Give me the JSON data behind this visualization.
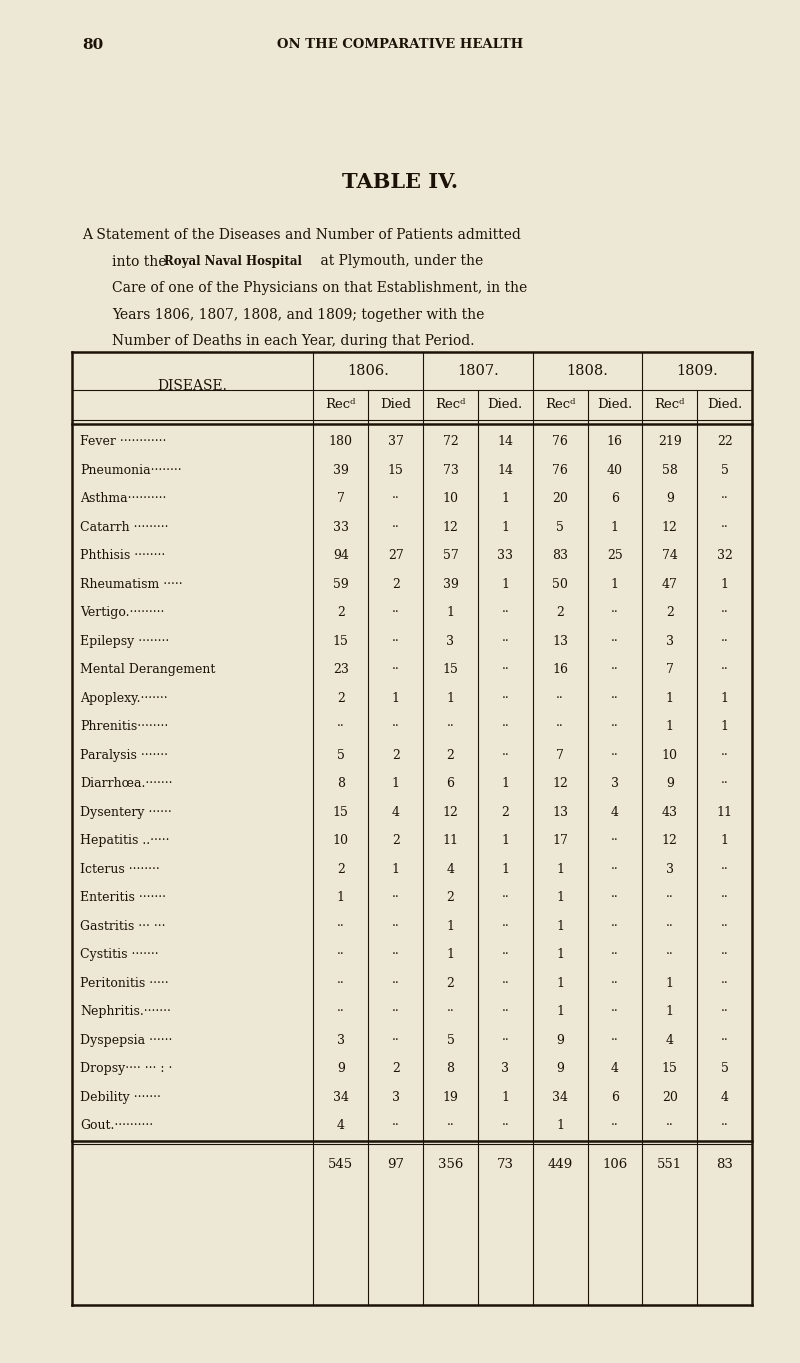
{
  "page_number": "80",
  "header": "ON THE COMPARATIVE HEALTH",
  "title": "TABLE IV.",
  "desc_line1": "A Statement of the Diseases and Number of Patients admitted",
  "desc_line2a": "into the ",
  "desc_line2b": "Royal Naval Hospital",
  "desc_line2c": " at Plymouth, under the",
  "desc_line3": "Care of one of the Physicians on that Establishment, in the",
  "desc_line4": "Years 1806, 1807, 1808, and 1809; together with the",
  "desc_line5": "Number of Deaths in each Year, during that Period.",
  "col_years": [
    "1806.",
    "1807.",
    "1808.",
    "1809."
  ],
  "col_sub": [
    "Recᵈ",
    "Died",
    "Recᵈ",
    "Died.",
    "Recᵈ",
    "Died.",
    "Recᵈ",
    "Died."
  ],
  "disease_col": "DISEASE.",
  "diseases": [
    "Fever ············",
    "Pneumonia········",
    "Asthma··········",
    "Catarrh ·········",
    "Phthisis ········",
    "Rheumatism ·····",
    "Vertigo.·········",
    "Epilepsy ········",
    "Mental Derangement",
    "Apoplexy.·······",
    "Phrenitis········",
    "Paralysis ·······",
    "Diarrhœa.·······",
    "Dysentery ······",
    "Hepatitis ..·····",
    "Icterus ········",
    "Enteritis ·······",
    "Gastritis ··· ···",
    "Cystitis ·······",
    "Peritonitis ·····",
    "Nephritis.·······",
    "Dyspepsia ······",
    "Dropsy···· ··· : ·",
    "Debility ·······",
    "Gout.··········"
  ],
  "data": [
    [
      180,
      37,
      72,
      14,
      76,
      16,
      219,
      22
    ],
    [
      39,
      15,
      73,
      14,
      76,
      40,
      58,
      5
    ],
    [
      7,
      "",
      10,
      1,
      20,
      6,
      9,
      ""
    ],
    [
      33,
      "",
      12,
      1,
      5,
      1,
      12,
      ""
    ],
    [
      94,
      27,
      57,
      33,
      83,
      25,
      74,
      32
    ],
    [
      59,
      2,
      39,
      1,
      50,
      1,
      47,
      1
    ],
    [
      2,
      "",
      1,
      "",
      2,
      "",
      2,
      ""
    ],
    [
      15,
      "",
      3,
      "",
      13,
      "",
      3,
      ""
    ],
    [
      23,
      "",
      15,
      "",
      16,
      "",
      7,
      ""
    ],
    [
      2,
      1,
      1,
      "",
      "",
      "",
      1,
      1
    ],
    [
      "",
      "",
      "",
      "",
      "",
      "",
      1,
      1
    ],
    [
      5,
      2,
      2,
      "",
      7,
      "",
      10,
      ""
    ],
    [
      8,
      1,
      6,
      1,
      12,
      3,
      9,
      ""
    ],
    [
      15,
      4,
      12,
      2,
      13,
      4,
      43,
      11
    ],
    [
      10,
      2,
      11,
      1,
      17,
      "",
      12,
      1
    ],
    [
      2,
      1,
      4,
      1,
      1,
      "",
      3,
      ""
    ],
    [
      1,
      "",
      2,
      "",
      1,
      "",
      "",
      ""
    ],
    [
      "",
      "",
      1,
      "",
      1,
      "",
      "",
      ""
    ],
    [
      "",
      "",
      1,
      "",
      1,
      "",
      "",
      ""
    ],
    [
      "",
      "",
      2,
      "",
      1,
      "",
      1,
      ""
    ],
    [
      "",
      "",
      "",
      "",
      1,
      "",
      1,
      ""
    ],
    [
      3,
      "",
      5,
      "",
      9,
      "",
      4,
      ""
    ],
    [
      9,
      2,
      8,
      3,
      9,
      4,
      15,
      5
    ],
    [
      34,
      3,
      19,
      1,
      34,
      6,
      20,
      4
    ],
    [
      4,
      "",
      "",
      "",
      1,
      "",
      "",
      ""
    ]
  ],
  "totals": [
    545,
    97,
    356,
    73,
    449,
    106,
    551,
    83
  ],
  "bg_color": "#ede8d5",
  "text_color": "#1c1208"
}
